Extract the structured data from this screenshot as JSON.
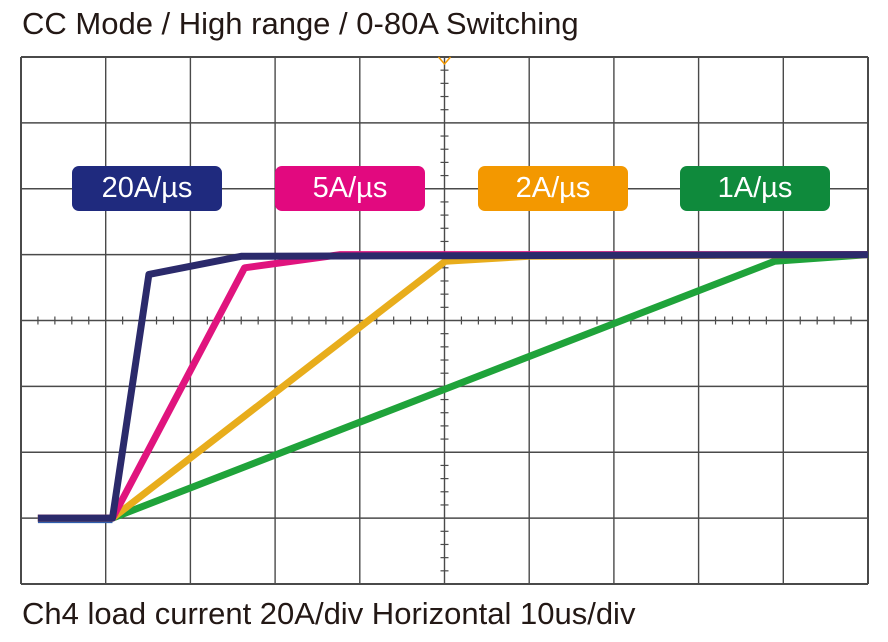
{
  "chart_data": {
    "type": "line",
    "title": "CC Mode / High range / 0-80A Switching",
    "caption": "Ch4 load current 20A/div Horizontal 10us/div",
    "xlabel": "",
    "ylabel": "",
    "xlim": [
      0,
      100
    ],
    "ylim": [
      -20,
      140
    ],
    "x_divisions": 10,
    "y_divisions": 8,
    "grid": true,
    "series": [
      {
        "name": "1A/µs",
        "color": "#1fa33a",
        "label_color": "#0f8a3c",
        "points": [
          [
            2,
            0
          ],
          [
            10.8,
            0
          ],
          [
            89,
            78
          ],
          [
            100,
            80
          ]
        ]
      },
      {
        "name": "2A/µs",
        "color": "#e8ad1c",
        "label_color": "#f39800",
        "points": [
          [
            2,
            0
          ],
          [
            10.8,
            0
          ],
          [
            50.1,
            78
          ],
          [
            60,
            79.5
          ],
          [
            100,
            80
          ]
        ]
      },
      {
        "name": "5A/µs",
        "color": "#e0147e",
        "label_color": "#e2097f",
        "points": [
          [
            2,
            0
          ],
          [
            10.8,
            0
          ],
          [
            26.4,
            76
          ],
          [
            37.7,
            80
          ],
          [
            100,
            80
          ]
        ]
      },
      {
        "name": "20A/µs",
        "color": "#2b2a6b",
        "label_color": "#1f2a7e",
        "points": [
          [
            2,
            0
          ],
          [
            10.8,
            0
          ],
          [
            15.1,
            74
          ],
          [
            26,
            79.5
          ],
          [
            100,
            80
          ]
        ]
      }
    ],
    "trigger_marker_color": "#f39800"
  }
}
